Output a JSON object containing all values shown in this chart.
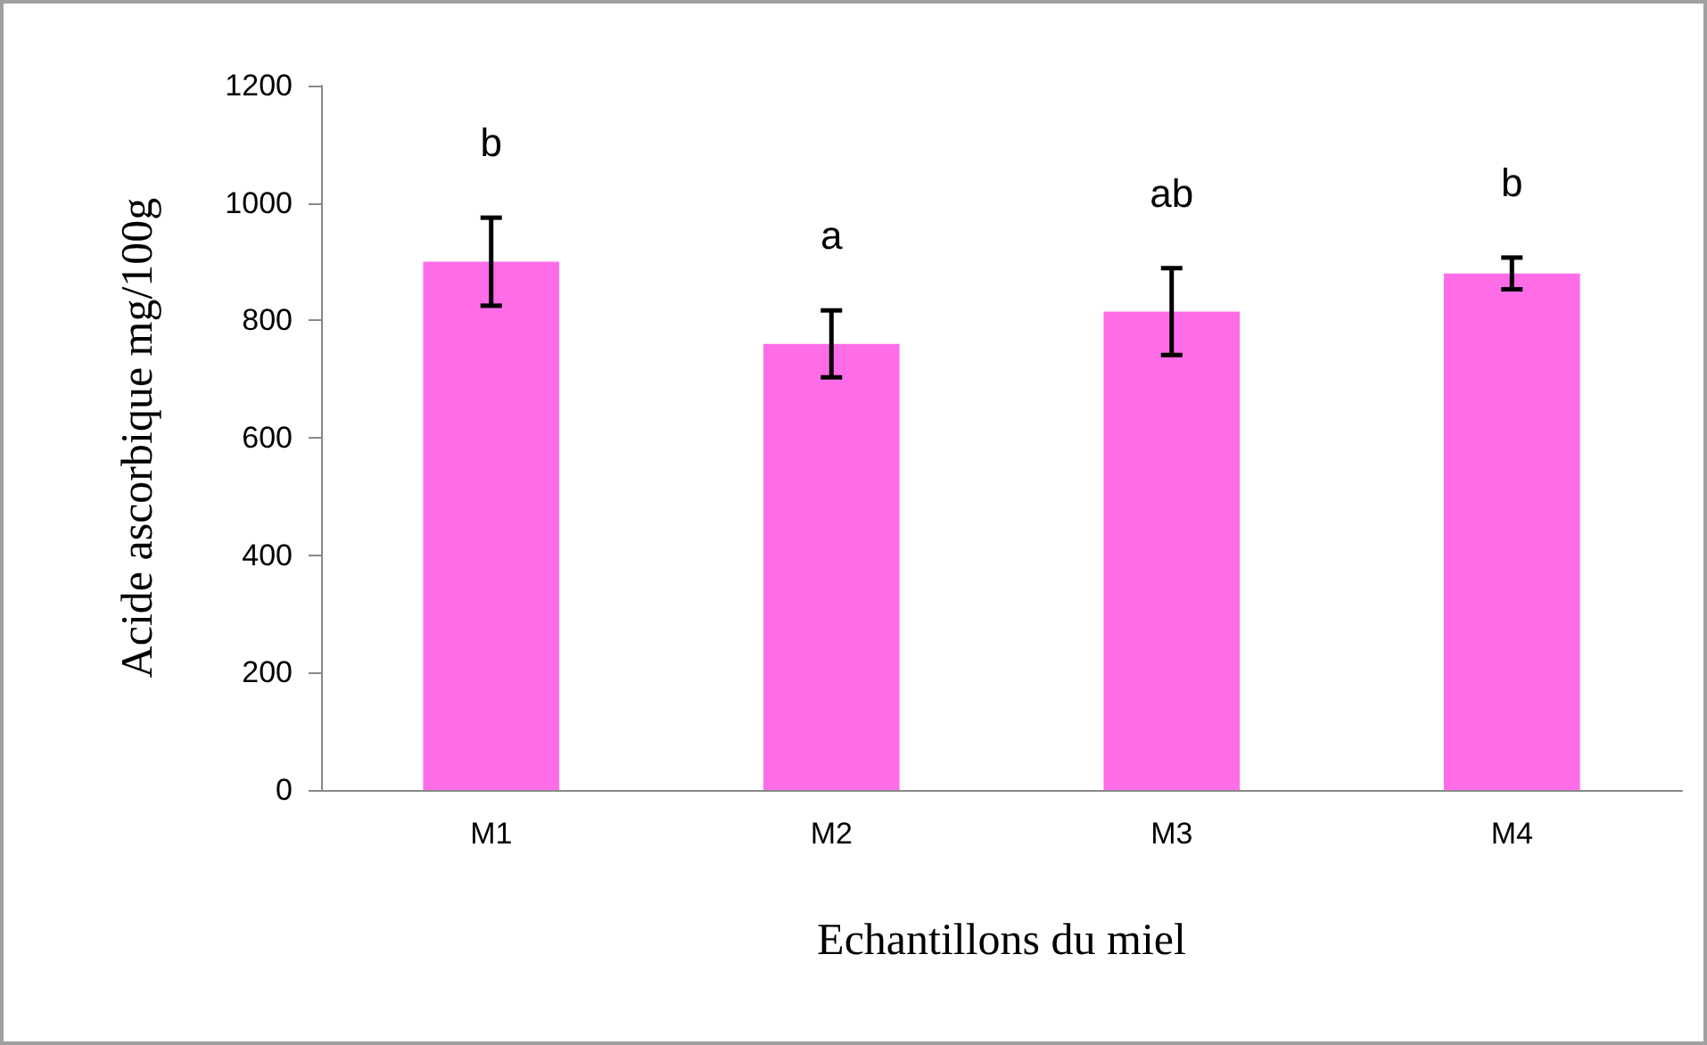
{
  "chart_data": {
    "type": "bar",
    "xlabel": "Echantillons du miel",
    "ylabel": "Acide ascorbique mg/100g",
    "categories": [
      "M1",
      "M2",
      "M3",
      "M4"
    ],
    "values": [
      900,
      760,
      815,
      880
    ],
    "errors": [
      75,
      57,
      74,
      27
    ],
    "color": "#ff6ce8",
    "ylim": [
      0,
      1200
    ],
    "yticks": [
      0,
      200,
      400,
      600,
      800,
      1000,
      1200
    ],
    "grid": false,
    "annotations": [
      "b",
      "a",
      "ab",
      "b"
    ]
  }
}
